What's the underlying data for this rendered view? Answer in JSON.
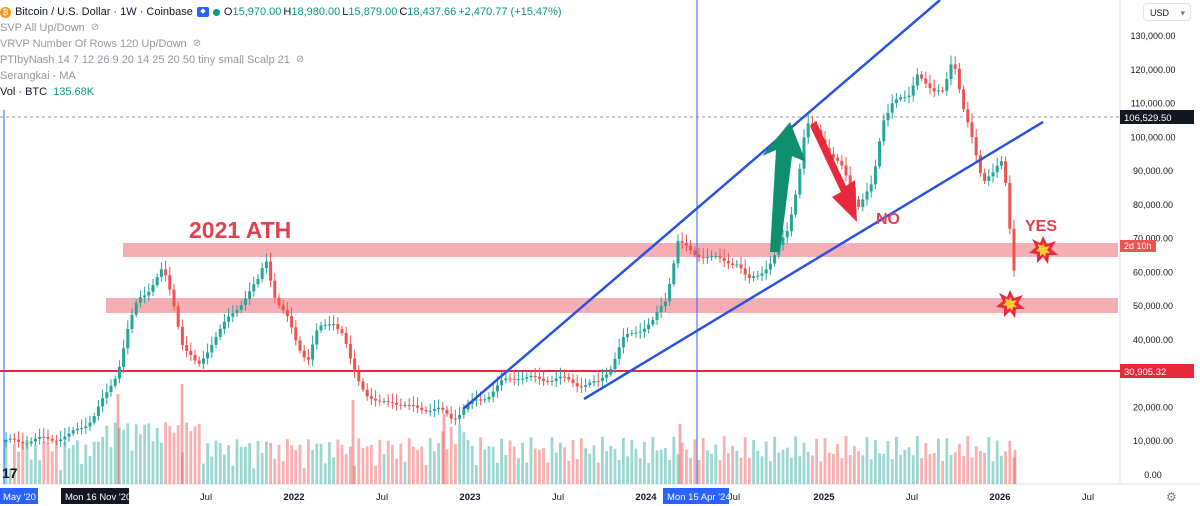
{
  "legend": {
    "symbol_icon": "bitcoin-icon",
    "symbol_text": "Bitcoin / U.S. Dollar · 1W · Coinbase",
    "open_label": "O",
    "open": "15,970.00",
    "high_label": "H",
    "high": "18,980.00",
    "low_label": "L",
    "low": "15,879.00",
    "close_label": "C",
    "close": "18,437.66",
    "change": "+2,470.77 (+15.47%)",
    "indicators": [
      {
        "label": "SVP All Up/Down"
      },
      {
        "label": "VRVP Number Of Rows 120 Up/Down"
      },
      {
        "label": "PTIbyNash 14 7 12 26 9 20 14 25 20 50 tiny small Scalp 21"
      },
      {
        "label": "Serangkai - MA"
      }
    ],
    "volume_label": "Vol · BTC",
    "volume_value": "135.68K"
  },
  "currency_selector": "USD",
  "annotations": {
    "ath_label": "2021 ATH",
    "no_label": "NO",
    "yes_label": "YES"
  },
  "price_axis": {
    "ticks": [
      {
        "label": "130,000.00",
        "value": 130000
      },
      {
        "label": "120,000.00",
        "value": 120000
      },
      {
        "label": "110,000.00",
        "value": 110000
      },
      {
        "label": "100,000.00",
        "value": 100000
      },
      {
        "label": "90,000.00",
        "value": 90000
      },
      {
        "label": "80,000.00",
        "value": 80000
      },
      {
        "label": "70,000.00",
        "value": 70000
      },
      {
        "label": "60,000.00",
        "value": 60000
      },
      {
        "label": "50,000.00",
        "value": 50000
      },
      {
        "label": "40,000.00",
        "value": 40000
      },
      {
        "label": "30,000.00",
        "value": 30000
      },
      {
        "label": "20,000.00",
        "value": 20000
      },
      {
        "label": "10,000.00",
        "value": 10000
      },
      {
        "label": "0.00",
        "value": 0
      }
    ],
    "current_price_label": "106,529.50",
    "current_price": 106529.5,
    "countdown_label": "2d 10h",
    "hline_label": "30,905.32",
    "hline_price": 30905.32
  },
  "time_axis": {
    "ticks": [
      "Jul",
      "2022",
      "Jul",
      "2023",
      "Jul",
      "2024",
      "Jul",
      "2025",
      "Jul",
      "2026",
      "Jul"
    ],
    "cursor_left_label": "May '20",
    "cursor_left2_label": "Mon 16 Nov '20",
    "cursor_mid_label": "Mon 15 Apr '24"
  },
  "colors": {
    "up": "#26a69a",
    "down": "#ef5350",
    "trendline": "#2952e3",
    "zone": "#f4a0a8",
    "hline": "#e8293b",
    "arrow_up": "#0e8f6e",
    "arrow_down": "#e8293b",
    "cursor": "#2962ff",
    "ath_text": "#e0414f"
  },
  "icons": {
    "eye": "eye-off-icon",
    "logo": "tradingview-logo",
    "settings": "gear-icon",
    "explosion": "explosion-icon"
  }
}
